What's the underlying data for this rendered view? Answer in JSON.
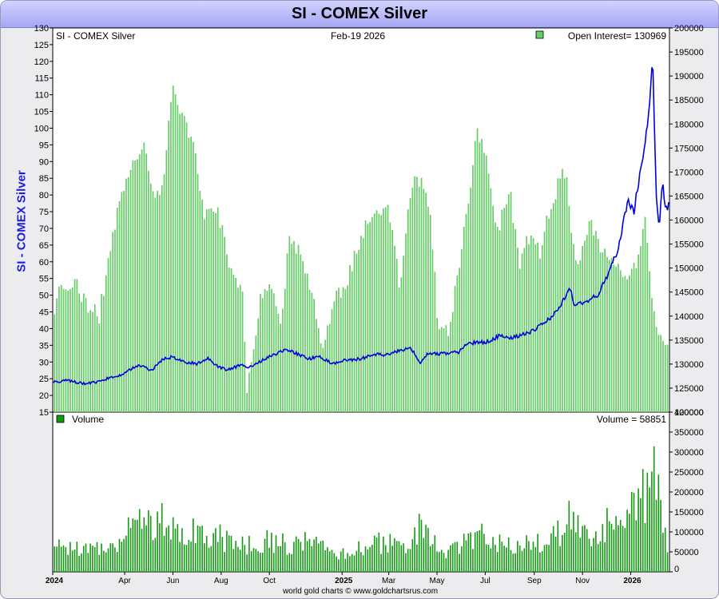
{
  "window": {
    "title": "SI  -  COMEX Silver"
  },
  "side_label": "SI  -  COMEX Silver",
  "footer": "world gold charts © www.goldchartsrus.com",
  "colors": {
    "price": "#0000e0",
    "open_interest": "#66cc66",
    "volume": "#119911",
    "title_bar": "#b4b4f8"
  },
  "chart_data": [
    {
      "type": "line",
      "panel": "price-and-open-interest",
      "header_left": "SI  -  COMEX Silver",
      "header_center": "Feb-19  2026",
      "legend": "Open Interest= 130969",
      "legend_placement": "top-right",
      "x_ticks": [
        {
          "label": "2024",
          "date": "2024-01-01",
          "year": true
        },
        {
          "label": "Apr",
          "date": "2024-04-01"
        },
        {
          "label": "Jun",
          "date": "2024-06-01"
        },
        {
          "label": "Aug",
          "date": "2024-08-01"
        },
        {
          "label": "Oct",
          "date": "2024-10-01"
        },
        {
          "label": "2025",
          "date": "2025-01-01",
          "year": true
        },
        {
          "label": "Mar",
          "date": "2025-03-01"
        },
        {
          "label": "May",
          "date": "2025-05-01"
        },
        {
          "label": "Jul",
          "date": "2025-07-01"
        },
        {
          "label": "Sep",
          "date": "2025-09-01"
        },
        {
          "label": "Nov",
          "date": "2025-11-01"
        },
        {
          "label": "2026",
          "date": "2026-01-01",
          "year": true
        }
      ],
      "x_range": [
        "2024-01-01",
        "2026-02-19"
      ],
      "left_axis": {
        "range": [
          15,
          130
        ],
        "ticks": [
          15,
          20,
          25,
          30,
          35,
          40,
          45,
          50,
          55,
          60,
          65,
          70,
          75,
          80,
          85,
          90,
          95,
          100,
          105,
          110,
          115,
          120,
          125,
          130
        ]
      },
      "right_axis": {
        "range": [
          120000,
          200000
        ],
        "ticks": [
          120000,
          125000,
          130000,
          135000,
          140000,
          145000,
          150000,
          155000,
          160000,
          165000,
          170000,
          175000,
          180000,
          185000,
          190000,
          195000,
          200000
        ]
      },
      "price_series": {
        "axis": "left",
        "points": [
          [
            "2024-01-01",
            24
          ],
          [
            "2024-01-20",
            24.5
          ],
          [
            "2024-02-10",
            23.5
          ],
          [
            "2024-02-28",
            24
          ],
          [
            "2024-03-10",
            25
          ],
          [
            "2024-03-25",
            26
          ],
          [
            "2024-04-10",
            28
          ],
          [
            "2024-04-20",
            29
          ],
          [
            "2024-05-05",
            27.5
          ],
          [
            "2024-05-20",
            31
          ],
          [
            "2024-06-01",
            31.5
          ],
          [
            "2024-06-15",
            30
          ],
          [
            "2024-07-01",
            29.5
          ],
          [
            "2024-07-15",
            31
          ],
          [
            "2024-07-25",
            29
          ],
          [
            "2024-08-08",
            27.5
          ],
          [
            "2024-08-25",
            29
          ],
          [
            "2024-09-08",
            28.5
          ],
          [
            "2024-09-25",
            31
          ],
          [
            "2024-10-10",
            32.5
          ],
          [
            "2024-10-22",
            34
          ],
          [
            "2024-11-05",
            32.5
          ],
          [
            "2024-11-20",
            31
          ],
          [
            "2024-12-05",
            31.5
          ],
          [
            "2024-12-20",
            29.5
          ],
          [
            "2025-01-05",
            30.5
          ],
          [
            "2025-01-25",
            31
          ],
          [
            "2025-02-10",
            32.5
          ],
          [
            "2025-02-25",
            32
          ],
          [
            "2025-03-10",
            33
          ],
          [
            "2025-03-28",
            34
          ],
          [
            "2025-04-05",
            32
          ],
          [
            "2025-04-08",
            29.5
          ],
          [
            "2025-04-20",
            32.5
          ],
          [
            "2025-05-10",
            32.5
          ],
          [
            "2025-05-28",
            33
          ],
          [
            "2025-06-05",
            35
          ],
          [
            "2025-06-20",
            36
          ],
          [
            "2025-07-05",
            36
          ],
          [
            "2025-07-20",
            38
          ],
          [
            "2025-08-01",
            37
          ],
          [
            "2025-08-15",
            38
          ],
          [
            "2025-08-28",
            39
          ],
          [
            "2025-09-10",
            41
          ],
          [
            "2025-09-25",
            44
          ],
          [
            "2025-10-05",
            47
          ],
          [
            "2025-10-16",
            52
          ],
          [
            "2025-10-22",
            47
          ],
          [
            "2025-11-05",
            48
          ],
          [
            "2025-11-20",
            50
          ],
          [
            "2025-12-01",
            55
          ],
          [
            "2025-12-15",
            63
          ],
          [
            "2025-12-28",
            78
          ],
          [
            "2026-01-05",
            75
          ],
          [
            "2026-01-15",
            90
          ],
          [
            "2026-01-22",
            100
          ],
          [
            "2026-01-29",
            121
          ],
          [
            "2026-02-02",
            80
          ],
          [
            "2026-02-06",
            70
          ],
          [
            "2026-02-10",
            84
          ],
          [
            "2026-02-14",
            75
          ],
          [
            "2026-02-19",
            78
          ]
        ]
      },
      "open_interest_series": {
        "axis": "right",
        "points": [
          [
            "2024-01-01",
            137000
          ],
          [
            "2024-01-08",
            146000
          ],
          [
            "2024-01-25",
            147500
          ],
          [
            "2024-02-15",
            142000
          ],
          [
            "2024-02-28",
            140000
          ],
          [
            "2024-03-15",
            156000
          ],
          [
            "2024-04-01",
            169000
          ],
          [
            "2024-04-10",
            172000
          ],
          [
            "2024-04-25",
            175000
          ],
          [
            "2024-05-05",
            165000
          ],
          [
            "2024-05-20",
            168000
          ],
          [
            "2024-05-30",
            187000
          ],
          [
            "2024-06-15",
            180000
          ],
          [
            "2024-07-01",
            172000
          ],
          [
            "2024-07-10",
            160000
          ],
          [
            "2024-07-25",
            163000
          ],
          [
            "2024-08-15",
            148000
          ],
          [
            "2024-08-27",
            146000
          ],
          [
            "2024-09-02",
            125000
          ],
          [
            "2024-09-20",
            145000
          ],
          [
            "2024-10-01",
            147000
          ],
          [
            "2024-10-15",
            138000
          ],
          [
            "2024-10-25",
            157000
          ],
          [
            "2024-11-10",
            152000
          ],
          [
            "2024-11-28",
            141000
          ],
          [
            "2024-12-08",
            133000
          ],
          [
            "2024-12-20",
            143000
          ],
          [
            "2025-01-05",
            146000
          ],
          [
            "2025-01-20",
            155000
          ],
          [
            "2025-02-10",
            162000
          ],
          [
            "2025-02-28",
            163000
          ],
          [
            "2025-03-15",
            145000
          ],
          [
            "2025-03-28",
            167000
          ],
          [
            "2025-04-10",
            169000
          ],
          [
            "2025-04-22",
            162000
          ],
          [
            "2025-05-01",
            138000
          ],
          [
            "2025-05-15",
            136000
          ],
          [
            "2025-05-28",
            150000
          ],
          [
            "2025-06-10",
            165000
          ],
          [
            "2025-06-20",
            179000
          ],
          [
            "2025-07-05",
            170000
          ],
          [
            "2025-07-15",
            158000
          ],
          [
            "2025-08-01",
            165000
          ],
          [
            "2025-08-12",
            151000
          ],
          [
            "2025-08-25",
            157000
          ],
          [
            "2025-09-08",
            153000
          ],
          [
            "2025-09-22",
            164000
          ],
          [
            "2025-10-10",
            171000
          ],
          [
            "2025-10-22",
            150000
          ],
          [
            "2025-11-10",
            160000
          ],
          [
            "2025-11-25",
            154000
          ],
          [
            "2025-12-10",
            150000
          ],
          [
            "2025-12-25",
            148000
          ],
          [
            "2026-01-08",
            152000
          ],
          [
            "2026-01-18",
            160000
          ],
          [
            "2026-01-28",
            142000
          ],
          [
            "2026-02-05",
            137000
          ],
          [
            "2026-02-15",
            133000
          ],
          [
            "2026-02-19",
            130969
          ]
        ]
      }
    },
    {
      "type": "bar",
      "panel": "volume",
      "legend": "Volume",
      "readout": "Volume = 58851",
      "legend_placement": "top-left",
      "right_axis": {
        "range": [
          0,
          400000
        ],
        "ticks": [
          0,
          50000,
          100000,
          150000,
          200000,
          250000,
          300000,
          350000,
          400000
        ]
      },
      "points": [
        [
          "2024-01-01",
          62000
        ],
        [
          "2024-01-25",
          70000
        ],
        [
          "2024-02-15",
          58000
        ],
        [
          "2024-03-10",
          70000
        ],
        [
          "2024-03-28",
          95000
        ],
        [
          "2024-04-10",
          145000
        ],
        [
          "2024-04-20",
          168000
        ],
        [
          "2024-05-05",
          120000
        ],
        [
          "2024-05-20",
          140000
        ],
        [
          "2024-06-01",
          125000
        ],
        [
          "2024-06-20",
          115000
        ],
        [
          "2024-07-10",
          110000
        ],
        [
          "2024-07-28",
          95000
        ],
        [
          "2024-08-10",
          82000
        ],
        [
          "2024-08-30",
          75000
        ],
        [
          "2024-09-20",
          80000
        ],
        [
          "2024-10-10",
          85000
        ],
        [
          "2024-10-28",
          72000
        ],
        [
          "2024-11-15",
          78000
        ],
        [
          "2024-12-05",
          65000
        ],
        [
          "2024-12-28",
          40000
        ],
        [
          "2025-01-15",
          62000
        ],
        [
          "2025-02-05",
          80000
        ],
        [
          "2025-02-25",
          75000
        ],
        [
          "2025-03-15",
          72000
        ],
        [
          "2025-03-30",
          70000
        ],
        [
          "2025-04-08",
          120000
        ],
        [
          "2025-04-20",
          90000
        ],
        [
          "2025-05-05",
          55000
        ],
        [
          "2025-05-25",
          60000
        ],
        [
          "2025-06-10",
          90000
        ],
        [
          "2025-06-25",
          100000
        ],
        [
          "2025-07-10",
          90000
        ],
        [
          "2025-07-28",
          80000
        ],
        [
          "2025-08-15",
          70000
        ],
        [
          "2025-09-05",
          80000
        ],
        [
          "2025-09-25",
          90000
        ],
        [
          "2025-10-08",
          120000
        ],
        [
          "2025-10-16",
          170000
        ],
        [
          "2025-10-30",
          110000
        ],
        [
          "2025-11-15",
          95000
        ],
        [
          "2025-12-05",
          130000
        ],
        [
          "2025-12-20",
          165000
        ],
        [
          "2025-12-28",
          200000
        ],
        [
          "2026-01-10",
          175000
        ],
        [
          "2026-01-22",
          230000
        ],
        [
          "2026-01-29",
          300000
        ],
        [
          "2026-02-05",
          200000
        ],
        [
          "2026-02-12",
          110000
        ],
        [
          "2026-02-19",
          58851
        ]
      ]
    }
  ]
}
